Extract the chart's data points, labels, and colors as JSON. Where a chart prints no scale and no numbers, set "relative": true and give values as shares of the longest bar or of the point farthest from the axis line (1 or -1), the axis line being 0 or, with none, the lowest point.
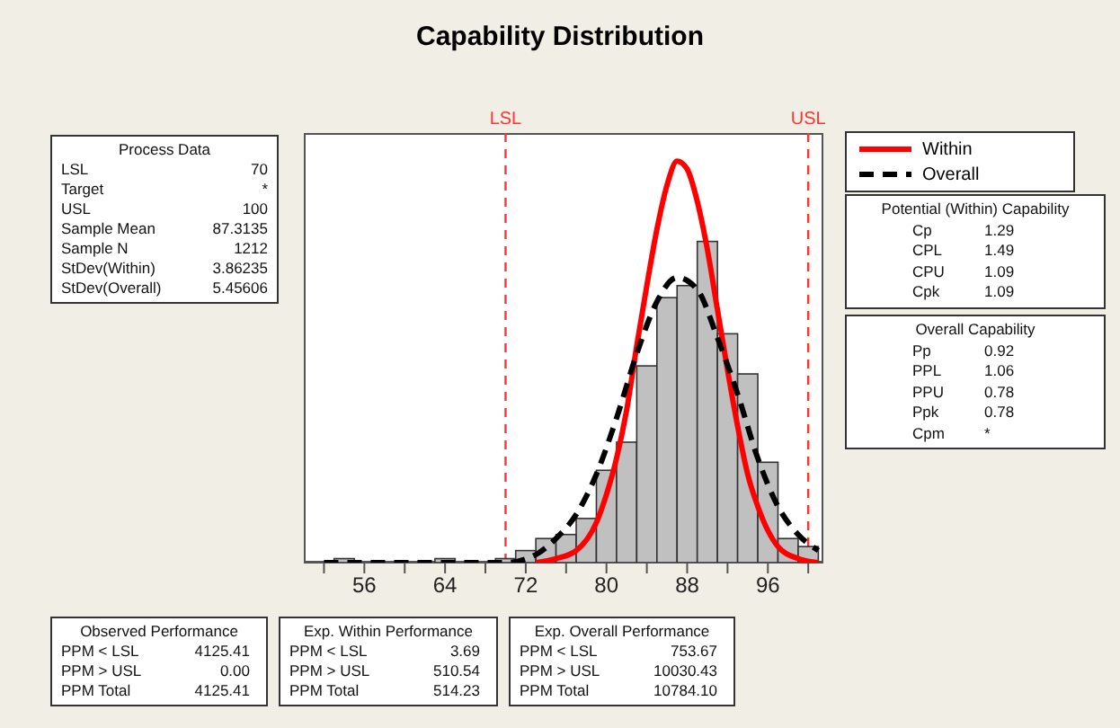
{
  "chart_data": {
    "type": "histogram",
    "title": "Capability Distribution",
    "relative": true,
    "color": "#c0c0c0",
    "bins": [
      53,
      55,
      57,
      59,
      61,
      63,
      65,
      67,
      69,
      71,
      73,
      75,
      77,
      79,
      81,
      83,
      85,
      87,
      89,
      91,
      93,
      95,
      97,
      99,
      101
    ],
    "values": [
      0.01,
      0,
      0,
      0,
      0,
      0.01,
      0,
      0,
      0.01,
      0.03,
      0.06,
      0.07,
      0.11,
      0.23,
      0.3,
      0.49,
      0.66,
      0.69,
      0.8,
      0.57,
      0.47,
      0.25,
      0.06,
      0.04
    ],
    "series": [
      {
        "name": "Within",
        "type": "line",
        "color": "#ff0000",
        "line_style": "solid",
        "x": [
          73,
          75,
          77,
          79,
          80,
          81,
          82,
          83,
          84,
          85,
          86,
          87,
          88,
          89,
          90,
          91,
          92,
          93,
          94,
          95,
          96,
          97,
          99,
          101
        ],
        "values": [
          0,
          0.01,
          0.03,
          0.1,
          0.17,
          0.26,
          0.38,
          0.54,
          0.69,
          0.83,
          0.94,
          1,
          0.98,
          0.9,
          0.78,
          0.63,
          0.48,
          0.34,
          0.22,
          0.14,
          0.08,
          0.04,
          0.01,
          0
        ]
      },
      {
        "name": "Overall",
        "type": "line",
        "color": "#000000",
        "line_style": "dashed",
        "x": [
          52,
          60,
          66,
          70,
          73,
          75,
          77,
          79,
          81,
          83,
          85,
          87,
          89,
          91,
          93,
          95,
          97,
          99,
          101
        ],
        "values": [
          0,
          0,
          0,
          0,
          0.02,
          0.06,
          0.12,
          0.22,
          0.36,
          0.52,
          0.65,
          0.71,
          0.68,
          0.56,
          0.42,
          0.26,
          0.14,
          0.07,
          0.03
        ]
      }
    ],
    "marker": "none",
    "xlim": [
      50,
      101.5
    ],
    "xticks": [
      {
        "value": 52,
        "label": null
      },
      56,
      {
        "value": 60,
        "label": null
      },
      64,
      {
        "value": 68,
        "label": null
      },
      72,
      {
        "value": 76,
        "label": null
      },
      80,
      {
        "value": 84,
        "label": null
      },
      88,
      {
        "value": 92,
        "label": null
      },
      96,
      {
        "value": 100,
        "label": null
      }
    ],
    "ref_lines": [
      {
        "axis": "x",
        "value": 70,
        "label": "LSL",
        "color": "#ff3333",
        "line_style": "dashed"
      },
      {
        "axis": "x",
        "value": 100,
        "label": "USL",
        "color": "#ff3333",
        "line_style": "dashed"
      }
    ],
    "legend": "top right",
    "annotations": [
      "Process Data\nLSL\t70\nTarget\t*\nUSL\t100\nSample Mean\t87.3135\nSample N\t1212\nStDev(Within)\t3.86235\nStDev(Overall)\t5.45606",
      "Potential (Within) Capability\nCp\t1.29\nCPL\t1.49\nCPU\t1.09\nCpk\t1.09",
      "Overall Capability\nPp\t0.92\nPPL\t1.06\nPPU\t0.78\nPpk\t0.78\nCpm\t*",
      "Observed Performance\nPPM < LSL\t4125.41\nPPM > USL\t0.00\nPPM Total\t4125.41",
      "Exp. Within Performance\nPPM < LSL\t3.69\nPPM > USL\t510.54\nPPM Total\t514.23",
      "Exp. Overall Performance\nPPM < LSL\t753.67\nPPM > USL\t10030.43\nPPM Total\t10784.10"
    ]
  }
}
